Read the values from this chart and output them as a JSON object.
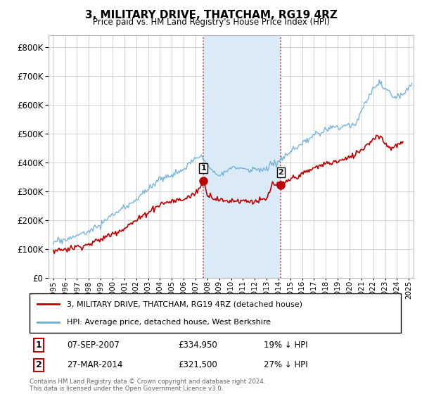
{
  "title": "3, MILITARY DRIVE, THATCHAM, RG19 4RZ",
  "subtitle": "Price paid vs. HM Land Registry's House Price Index (HPI)",
  "legend_label1": "3, MILITARY DRIVE, THATCHAM, RG19 4RZ (detached house)",
  "legend_label2": "HPI: Average price, detached house, West Berkshire",
  "table_row1": [
    "1",
    "07-SEP-2007",
    "£334,950",
    "19% ↓ HPI"
  ],
  "table_row2": [
    "2",
    "27-MAR-2014",
    "£321,500",
    "27% ↓ HPI"
  ],
  "footnote": "Contains HM Land Registry data © Crown copyright and database right 2024.\nThis data is licensed under the Open Government Licence v3.0.",
  "sale1_x": 2007.67,
  "sale1_y": 334950,
  "sale2_x": 2014.21,
  "sale2_y": 321500,
  "shaded_region_start": 2007.67,
  "shaded_region_end": 2014.21,
  "hpi_color": "#6aaed6",
  "price_color": "#c00000",
  "shaded_color": "#daeaf6",
  "background_color": "#ffffff",
  "grid_color": "#cccccc",
  "ylim": [
    0,
    840000
  ],
  "xlim_start": 1994.6,
  "xlim_end": 2025.4
}
